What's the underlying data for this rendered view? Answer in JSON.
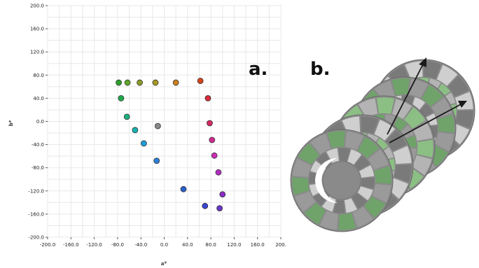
{
  "panels": {
    "a": "a.",
    "b": "b."
  },
  "chart_data": {
    "type": "scatter",
    "title": "",
    "xlabel": "a*",
    "ylabel": "b*",
    "xlim": [
      -200,
      200
    ],
    "ylim": [
      -200,
      200
    ],
    "grid": true,
    "x_ticks": [
      "-200.0",
      "-160.0",
      "-120.0",
      "-80.0",
      "-40.0",
      "0.0",
      "40.0",
      "80.0",
      "120.0",
      "160.0",
      "200."
    ],
    "x_tick_values": [
      -200,
      -160,
      -120,
      -80,
      -40,
      0,
      40,
      80,
      120,
      160,
      200
    ],
    "y_ticks": [
      "200.0",
      "160.0",
      "120.0",
      "80.0",
      "40.0",
      "0.0",
      "-40.0",
      "-80.0",
      "-120.0",
      "-160.0",
      "-200.0"
    ],
    "y_tick_values": [
      200,
      160,
      120,
      80,
      40,
      0,
      -40,
      -80,
      -120,
      -160,
      -200
    ],
    "points": [
      {
        "x": -78,
        "y": 67,
        "color": "#2ca02c"
      },
      {
        "x": -63,
        "y": 67,
        "color": "#5fa82a"
      },
      {
        "x": -42,
        "y": 67,
        "color": "#8c9a26"
      },
      {
        "x": -15,
        "y": 67,
        "color": "#a69a22"
      },
      {
        "x": 20,
        "y": 67,
        "color": "#c97f1c"
      },
      {
        "x": 62,
        "y": 70,
        "color": "#d9431c"
      },
      {
        "x": -74,
        "y": 40,
        "color": "#20a848"
      },
      {
        "x": -64,
        "y": 8,
        "color": "#1db07c"
      },
      {
        "x": -50,
        "y": -15,
        "color": "#17b3b0"
      },
      {
        "x": -35,
        "y": -38,
        "color": "#1f9fd9"
      },
      {
        "x": -13,
        "y": -68,
        "color": "#2a7fd9"
      },
      {
        "x": 33,
        "y": -117,
        "color": "#2a5fc9"
      },
      {
        "x": 70,
        "y": -146,
        "color": "#3a45d0"
      },
      {
        "x": 95,
        "y": -150,
        "color": "#6a36c9"
      },
      {
        "x": 100,
        "y": -126,
        "color": "#8a2cc4"
      },
      {
        "x": 93,
        "y": -88,
        "color": "#b22cc4"
      },
      {
        "x": 86,
        "y": -59,
        "color": "#cc2cb5"
      },
      {
        "x": 82,
        "y": -32,
        "color": "#d12a8f"
      },
      {
        "x": 78,
        "y": -3,
        "color": "#d42a63"
      },
      {
        "x": 75,
        "y": 40,
        "color": "#d62a3a"
      },
      {
        "x": -11,
        "y": -8,
        "color": "#8a8a8a"
      }
    ]
  },
  "rings_figure": {
    "ring_colors": [
      "#7a7a7a",
      "#9a9a9a",
      "#b4b4b4",
      "#cfcfcf",
      "#6fa36a",
      "#8cbf84"
    ],
    "arrow_color": "#1a1a1a"
  }
}
